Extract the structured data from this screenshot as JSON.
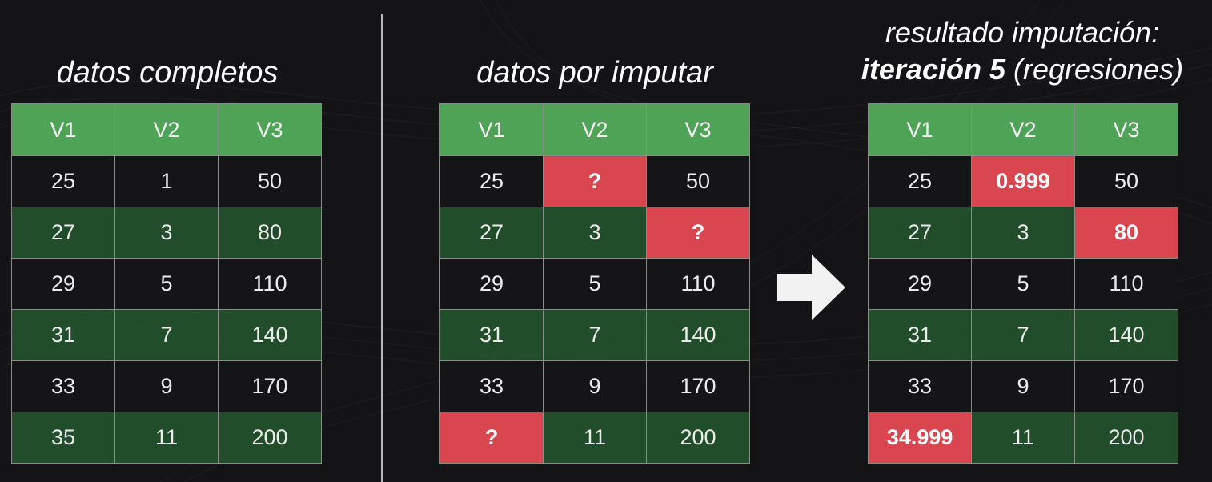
{
  "titles": {
    "complete": "datos completos",
    "imputar": "datos por imputar",
    "result_line1": "resultado imputación:",
    "result_bold": "iteración 5",
    "result_rest": " (regresiones)"
  },
  "colors": {
    "header_green": "#4fa356",
    "row_green": "#24522e",
    "row_dark": "#161618",
    "missing_red": "#d94650",
    "divider": "#b9b9b9"
  },
  "icons": [
    "arrow-right-icon"
  ],
  "tables": {
    "complete": {
      "headers": [
        "V1",
        "V2",
        "V3"
      ],
      "rows": [
        [
          "25",
          "1",
          "50"
        ],
        [
          "27",
          "3",
          "80"
        ],
        [
          "29",
          "5",
          "110"
        ],
        [
          "31",
          "7",
          "140"
        ],
        [
          "33",
          "9",
          "170"
        ],
        [
          "35",
          "11",
          "200"
        ]
      ],
      "highlight": []
    },
    "imputar": {
      "headers": [
        "V1",
        "V2",
        "V3"
      ],
      "rows": [
        [
          "25",
          "?",
          "50"
        ],
        [
          "27",
          "3",
          "?"
        ],
        [
          "29",
          "5",
          "110"
        ],
        [
          "31",
          "7",
          "140"
        ],
        [
          "33",
          "9",
          "170"
        ],
        [
          "?",
          "11",
          "200"
        ]
      ],
      "highlight": [
        [
          0,
          1
        ],
        [
          1,
          2
        ],
        [
          5,
          0
        ]
      ]
    },
    "result": {
      "headers": [
        "V1",
        "V2",
        "V3"
      ],
      "rows": [
        [
          "25",
          "0.999",
          "50"
        ],
        [
          "27",
          "3",
          "80"
        ],
        [
          "29",
          "5",
          "110"
        ],
        [
          "31",
          "7",
          "140"
        ],
        [
          "33",
          "9",
          "170"
        ],
        [
          "34.999",
          "11",
          "200"
        ]
      ],
      "highlight": [
        [
          0,
          1
        ],
        [
          1,
          2
        ],
        [
          5,
          0
        ]
      ]
    }
  }
}
